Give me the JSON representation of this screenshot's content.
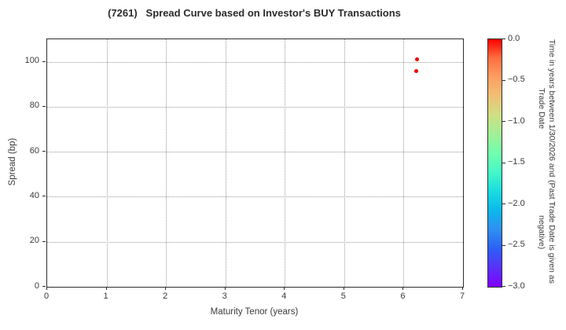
{
  "title": "(7261)   Spread Curve based on Investor's BUY Transactions",
  "chart_data": {
    "type": "scatter",
    "title": "(7261)   Spread Curve based on Investor's BUY Transactions",
    "xlabel": "Maturity Tenor (years)",
    "ylabel": "Spread (bp)",
    "xlim": [
      0,
      7
    ],
    "ylim": [
      0,
      110
    ],
    "xticks": [
      0,
      1,
      2,
      3,
      4,
      5,
      6,
      7
    ],
    "yticks": [
      0,
      20,
      40,
      60,
      80,
      100
    ],
    "grid": true,
    "grid_style": "dotted",
    "grid_color": "#9a9a9a",
    "axis_color": "#2e2e2e",
    "points": [
      {
        "x": 6.23,
        "y": 101,
        "time_years": 0.0,
        "color": "#f40000"
      },
      {
        "x": 6.21,
        "y": 96,
        "time_years": 0.0,
        "color": "#f40000"
      }
    ],
    "colorbar": {
      "label_line1": "Time in years between 1/30/2026 and Trade Date",
      "label_line2": "(Past Trade Date is given as negative)",
      "tick_values": [
        0.0,
        -0.5,
        -1.0,
        -1.5,
        -2.0,
        -2.5,
        -3.0
      ],
      "tick_labels": [
        "0.0",
        "−0.5",
        "−1.0",
        "−1.5",
        "−2.0",
        "−2.5",
        "−3.0"
      ],
      "range_top": 0.0,
      "range_bottom": -3.0,
      "colormap": "rainbow",
      "gradient_stops": [
        "#fb0000",
        "#fe7040",
        "#fd9f63",
        "#f0c075",
        "#cfe084",
        "#a0f096",
        "#70ffae",
        "#44f8c8",
        "#18dce0",
        "#0cb8ec",
        "#2f8ff0",
        "#2b60f5",
        "#5a30fa",
        "#7f00ff"
      ]
    }
  }
}
